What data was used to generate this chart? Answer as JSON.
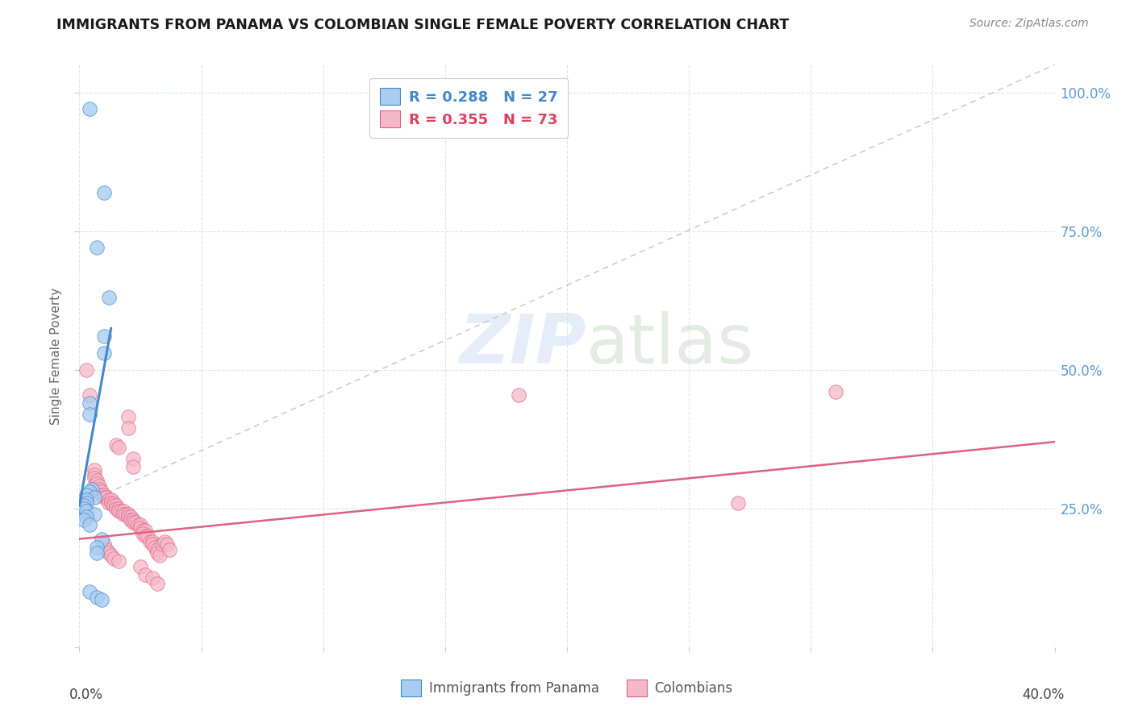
{
  "title": "IMMIGRANTS FROM PANAMA VS COLOMBIAN SINGLE FEMALE POVERTY CORRELATION CHART",
  "source": "Source: ZipAtlas.com",
  "ylabel": "Single Female Poverty",
  "ytick_labels": [
    "",
    "25.0%",
    "50.0%",
    "75.0%",
    "100.0%"
  ],
  "panama_color": "#aaccf0",
  "colombia_color": "#f5b8c8",
  "trendline_panama_color": "#4488cc",
  "trendline_colombia_color": "#e06080",
  "diagonal_color": "#b8c4d4",
  "panama_points": [
    [
      0.004,
      0.97
    ],
    [
      0.01,
      0.82
    ],
    [
      0.007,
      0.72
    ],
    [
      0.012,
      0.63
    ],
    [
      0.01,
      0.56
    ],
    [
      0.01,
      0.53
    ],
    [
      0.004,
      0.44
    ],
    [
      0.004,
      0.42
    ],
    [
      0.005,
      0.285
    ],
    [
      0.004,
      0.28
    ],
    [
      0.003,
      0.275
    ],
    [
      0.006,
      0.27
    ],
    [
      0.003,
      0.265
    ],
    [
      0.003,
      0.26
    ],
    [
      0.002,
      0.255
    ],
    [
      0.002,
      0.25
    ],
    [
      0.003,
      0.245
    ],
    [
      0.006,
      0.24
    ],
    [
      0.003,
      0.235
    ],
    [
      0.002,
      0.23
    ],
    [
      0.004,
      0.22
    ],
    [
      0.009,
      0.195
    ],
    [
      0.007,
      0.18
    ],
    [
      0.007,
      0.17
    ],
    [
      0.004,
      0.1
    ],
    [
      0.007,
      0.09
    ],
    [
      0.009,
      0.085
    ]
  ],
  "colombia_points": [
    [
      0.003,
      0.5
    ],
    [
      0.004,
      0.455
    ],
    [
      0.02,
      0.415
    ],
    [
      0.02,
      0.395
    ],
    [
      0.015,
      0.365
    ],
    [
      0.016,
      0.36
    ],
    [
      0.022,
      0.34
    ],
    [
      0.022,
      0.325
    ],
    [
      0.006,
      0.32
    ],
    [
      0.006,
      0.31
    ],
    [
      0.006,
      0.305
    ],
    [
      0.007,
      0.3
    ],
    [
      0.007,
      0.295
    ],
    [
      0.008,
      0.29
    ],
    [
      0.008,
      0.285
    ],
    [
      0.009,
      0.28
    ],
    [
      0.009,
      0.275
    ],
    [
      0.01,
      0.275
    ],
    [
      0.01,
      0.27
    ],
    [
      0.011,
      0.27
    ],
    [
      0.012,
      0.265
    ],
    [
      0.012,
      0.26
    ],
    [
      0.013,
      0.265
    ],
    [
      0.013,
      0.26
    ],
    [
      0.014,
      0.26
    ],
    [
      0.014,
      0.255
    ],
    [
      0.015,
      0.255
    ],
    [
      0.015,
      0.25
    ],
    [
      0.016,
      0.25
    ],
    [
      0.016,
      0.245
    ],
    [
      0.017,
      0.245
    ],
    [
      0.018,
      0.245
    ],
    [
      0.018,
      0.24
    ],
    [
      0.019,
      0.24
    ],
    [
      0.02,
      0.24
    ],
    [
      0.02,
      0.235
    ],
    [
      0.021,
      0.235
    ],
    [
      0.021,
      0.23
    ],
    [
      0.022,
      0.23
    ],
    [
      0.022,
      0.225
    ],
    [
      0.023,
      0.225
    ],
    [
      0.024,
      0.22
    ],
    [
      0.025,
      0.22
    ],
    [
      0.025,
      0.215
    ],
    [
      0.026,
      0.21
    ],
    [
      0.027,
      0.21
    ],
    [
      0.026,
      0.205
    ],
    [
      0.027,
      0.2
    ],
    [
      0.028,
      0.2
    ],
    [
      0.029,
      0.19
    ],
    [
      0.03,
      0.19
    ],
    [
      0.03,
      0.185
    ],
    [
      0.031,
      0.18
    ],
    [
      0.032,
      0.175
    ],
    [
      0.032,
      0.17
    ],
    [
      0.033,
      0.165
    ],
    [
      0.034,
      0.185
    ],
    [
      0.035,
      0.19
    ],
    [
      0.036,
      0.185
    ],
    [
      0.037,
      0.175
    ],
    [
      0.025,
      0.145
    ],
    [
      0.027,
      0.13
    ],
    [
      0.03,
      0.125
    ],
    [
      0.032,
      0.115
    ],
    [
      0.01,
      0.185
    ],
    [
      0.011,
      0.175
    ],
    [
      0.012,
      0.17
    ],
    [
      0.013,
      0.165
    ],
    [
      0.014,
      0.16
    ],
    [
      0.016,
      0.155
    ],
    [
      0.18,
      0.455
    ],
    [
      0.27,
      0.26
    ],
    [
      0.31,
      0.46
    ]
  ],
  "xlim": [
    0.0,
    0.4
  ],
  "ylim": [
    0.0,
    1.05
  ],
  "background_color": "#ffffff",
  "grid_color": "#dde3ea"
}
